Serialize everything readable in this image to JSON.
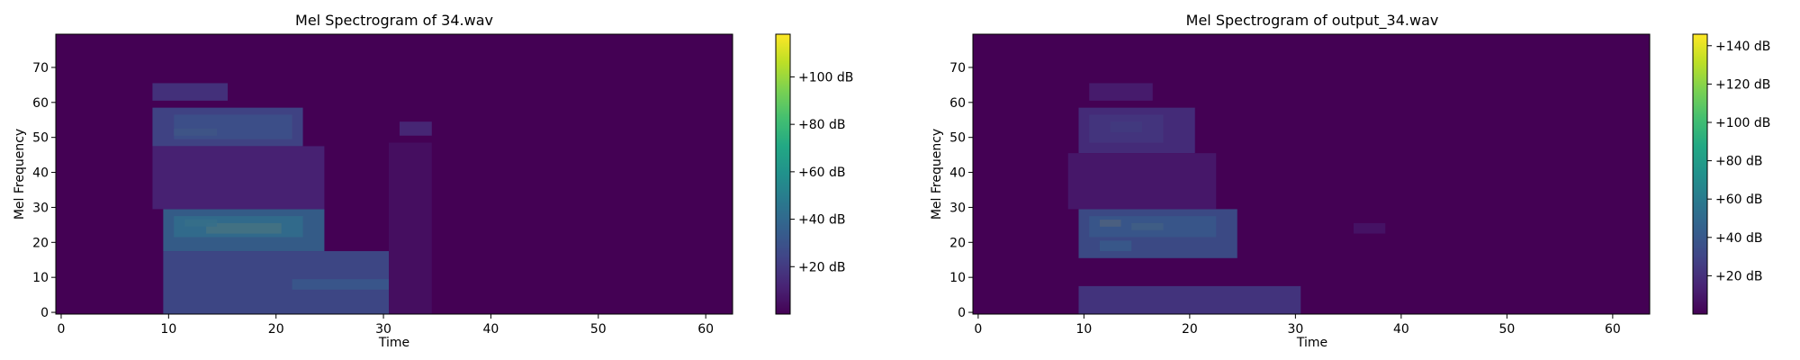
{
  "chart_data": [
    {
      "type": "heatmap",
      "title": "Mel Spectrogram of 34.wav",
      "xlabel": "Time",
      "ylabel": "Mel Frequency",
      "xlim": [
        -0.5,
        62.5
      ],
      "ylim": [
        -0.5,
        79.5
      ],
      "xticks": [
        0,
        10,
        20,
        30,
        40,
        50,
        60
      ],
      "yticks": [
        0,
        10,
        20,
        30,
        40,
        50,
        60,
        70
      ],
      "colormap": "viridis",
      "colorbar": {
        "range": [
          0,
          118
        ],
        "ticks": [
          20,
          40,
          60,
          80,
          100
        ],
        "tick_labels": [
          "+20 dB",
          "+40 dB",
          "+60 dB",
          "+80 dB",
          "+100 dB"
        ]
      },
      "grid": false,
      "blobs": [
        {
          "t": [
            11,
            22
          ],
          "f": [
            22,
            27
          ],
          "level": 72
        },
        {
          "t": [
            14,
            20
          ],
          "f": [
            23,
            25
          ],
          "level": 112
        },
        {
          "t": [
            12,
            14
          ],
          "f": [
            25,
            26
          ],
          "level": 85
        },
        {
          "t": [
            10,
            24
          ],
          "f": [
            18,
            29
          ],
          "level": 38
        },
        {
          "t": [
            10,
            30
          ],
          "f": [
            0,
            17
          ],
          "level": 28
        },
        {
          "t": [
            22,
            30
          ],
          "f": [
            7,
            9
          ],
          "level": 32
        },
        {
          "t": [
            11,
            21
          ],
          "f": [
            50,
            56
          ],
          "level": 55
        },
        {
          "t": [
            11,
            14
          ],
          "f": [
            51,
            52
          ],
          "level": 80
        },
        {
          "t": [
            9,
            22
          ],
          "f": [
            48,
            58
          ],
          "level": 26
        },
        {
          "t": [
            9,
            15
          ],
          "f": [
            61,
            65
          ],
          "level": 18
        },
        {
          "t": [
            32,
            34
          ],
          "f": [
            51,
            54
          ],
          "level": 14
        },
        {
          "t": [
            9,
            24
          ],
          "f": [
            30,
            47
          ],
          "level": 12
        },
        {
          "t": [
            31,
            34
          ],
          "f": [
            0,
            48
          ],
          "level": 5
        }
      ]
    },
    {
      "type": "heatmap",
      "title": "Mel Spectrogram of output_34.wav",
      "xlabel": "Time",
      "ylabel": "Mel Frequency",
      "xlim": [
        -0.5,
        63.5
      ],
      "ylim": [
        -0.5,
        79.5
      ],
      "xticks": [
        0,
        10,
        20,
        30,
        40,
        50,
        60
      ],
      "yticks": [
        0,
        10,
        20,
        30,
        40,
        50,
        60,
        70
      ],
      "colormap": "viridis",
      "colorbar": {
        "range": [
          0,
          146
        ],
        "ticks": [
          20,
          40,
          60,
          80,
          100,
          120,
          140
        ],
        "tick_labels": [
          "+20 dB",
          "+40 dB",
          "+60 dB",
          "+80 dB",
          "+100 dB",
          "+120 dB",
          "+140 dB"
        ]
      },
      "grid": false,
      "blobs": [
        {
          "t": [
            11,
            22
          ],
          "f": [
            22,
            27
          ],
          "level": 68
        },
        {
          "t": [
            12,
            13
          ],
          "f": [
            25,
            26
          ],
          "level": 140
        },
        {
          "t": [
            15,
            17
          ],
          "f": [
            24,
            25
          ],
          "level": 115
        },
        {
          "t": [
            12,
            14
          ],
          "f": [
            18,
            20
          ],
          "level": 80
        },
        {
          "t": [
            10,
            24
          ],
          "f": [
            16,
            29
          ],
          "level": 36
        },
        {
          "t": [
            10,
            30
          ],
          "f": [
            0,
            7
          ],
          "level": 24
        },
        {
          "t": [
            11,
            17
          ],
          "f": [
            49,
            56
          ],
          "level": 48
        },
        {
          "t": [
            13,
            15
          ],
          "f": [
            52,
            54
          ],
          "level": 72
        },
        {
          "t": [
            10,
            20
          ],
          "f": [
            46,
            58
          ],
          "level": 20
        },
        {
          "t": [
            11,
            16
          ],
          "f": [
            61,
            65
          ],
          "level": 12
        },
        {
          "t": [
            36,
            38
          ],
          "f": [
            23,
            25
          ],
          "level": 8
        },
        {
          "t": [
            9,
            22
          ],
          "f": [
            30,
            45
          ],
          "level": 10
        }
      ]
    }
  ]
}
